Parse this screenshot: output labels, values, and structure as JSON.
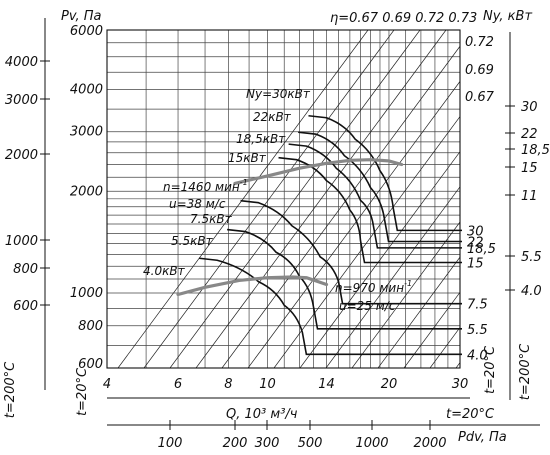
{
  "chart_data": {
    "type": "line",
    "x_axis": {
      "label": "Q, 10³ м³/ч",
      "scale": "log",
      "range": [
        4,
        30
      ],
      "ticks": [
        "4",
        "6",
        "8",
        "10",
        "14",
        "20",
        "30"
      ],
      "temp_note": "t=20°C"
    },
    "pdv_axis": {
      "label": "Pdv, Па",
      "ticks": [
        "100",
        "200",
        "300",
        "500",
        "1000",
        "2000"
      ]
    },
    "y_axis_pv": {
      "label": "Pv, Па",
      "scale": "log",
      "range": [
        600,
        6000
      ],
      "ticks_inner": [
        "6000",
        "4000",
        "3000",
        "2000",
        "1000",
        "800",
        "600"
      ],
      "ticks_outer": [
        "4000",
        "3000",
        "2000",
        "1000",
        "800",
        "600"
      ],
      "temp_note_inner": "t=20°C",
      "temp_note_outer": "t=200°C"
    },
    "y_axis_ny": {
      "label": "Ny, кВт",
      "ticks_inner": [
        "30",
        "22",
        "18,5",
        "15",
        "11",
        "7.5",
        "5.5",
        "4.0"
      ],
      "ticks_outer": [
        "30",
        "22",
        "18,5",
        "15",
        "11",
        "5.5",
        "4.0"
      ],
      "temp_note_inner": "t=20°C",
      "temp_note_outer": "t=200°C"
    },
    "efficiency": {
      "header": "η=0.67 0.69 0.72 0.73",
      "labels": [
        "0.72",
        "0.69",
        "0.67"
      ]
    },
    "speed_labels": [
      {
        "n": "n=1460 мин",
        "sup": "-1",
        "u": "u=38 м/с"
      },
      {
        "n": "n=970 мин",
        "sup": "-1",
        "u": "u=25 м/с"
      }
    ],
    "series": [
      {
        "name": "Ny=30кВт",
        "motor": "30",
        "points": [
          [
            14,
            3300
          ],
          [
            16.5,
            2850
          ],
          [
            19,
            2300
          ],
          [
            20.5,
            1780
          ]
        ]
      },
      {
        "name": "22кВт",
        "motor": "22",
        "points": [
          [
            13.2,
            2950
          ],
          [
            15.5,
            2550
          ],
          [
            18,
            2050
          ],
          [
            19.5,
            1650
          ]
        ]
      },
      {
        "name": "18,5кВт",
        "motor": "18,5",
        "points": [
          [
            12.5,
            2720
          ],
          [
            14.8,
            2340
          ],
          [
            17,
            1880
          ],
          [
            18.3,
            1580
          ]
        ]
      },
      {
        "name": "15кВт",
        "motor": "15",
        "points": [
          [
            11.8,
            2480
          ],
          [
            14,
            2150
          ],
          [
            16,
            1760
          ],
          [
            17,
            1430
          ]
        ]
      },
      {
        "name": "7.5кВт",
        "motor": "7.5",
        "points": [
          [
            9.5,
            1850
          ],
          [
            11.5,
            1580
          ],
          [
            13.5,
            1280
          ],
          [
            15,
            1080
          ]
        ]
      },
      {
        "name": "5.5кВт",
        "motor": "5.5",
        "points": [
          [
            8.8,
            1520
          ],
          [
            10.5,
            1320
          ],
          [
            12,
            1120
          ],
          [
            13,
            910
          ]
        ]
      },
      {
        "name": "4.0кВт",
        "motor": "4.0",
        "points": [
          [
            7.5,
            1250
          ],
          [
            9.5,
            1080
          ],
          [
            11,
            920
          ],
          [
            12.2,
            765
          ]
        ]
      }
    ],
    "speed_curves": [
      {
        "n": 1460,
        "points": [
          [
            8.3,
            2110
          ],
          [
            10,
            2220
          ],
          [
            12,
            2340
          ],
          [
            14,
            2420
          ],
          [
            16,
            2470
          ],
          [
            18,
            2480
          ],
          [
            20,
            2460
          ],
          [
            21.5,
            2400
          ]
        ]
      },
      {
        "n": 970,
        "points": [
          [
            6,
            990
          ],
          [
            7,
            1040
          ],
          [
            8.5,
            1090
          ],
          [
            10,
            1110
          ],
          [
            11.5,
            1115
          ],
          [
            12.5,
            1110
          ],
          [
            14,
            1060
          ]
        ]
      }
    ]
  }
}
